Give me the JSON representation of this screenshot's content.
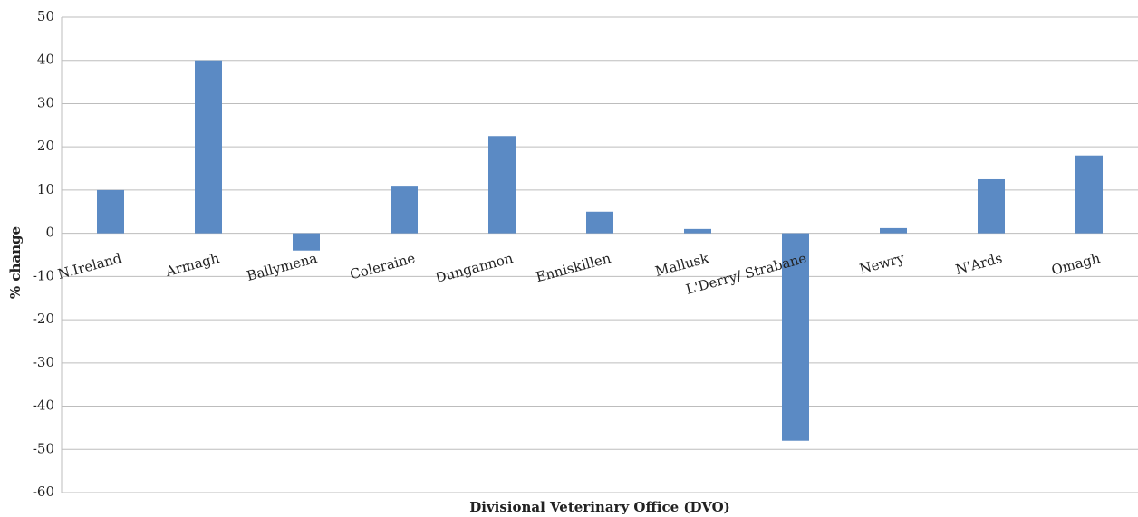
{
  "chart_data": {
    "type": "bar",
    "x_label": "Divisional Veterinary Office (DVO)",
    "y_label": "% change",
    "categories": [
      "N.Ireland",
      "Armagh",
      "Ballymena",
      "Coleraine",
      "Dungannon",
      "Enniskillen",
      "Mallusk",
      "L'Derry/ Strabane",
      "Newry",
      "N'Ards",
      "Omagh"
    ],
    "values": [
      10,
      40,
      -4,
      11,
      22.5,
      5,
      1,
      -48,
      1.2,
      12.5,
      18
    ],
    "color": "#5b8ac4",
    "ylim": [
      -60,
      50
    ],
    "yticks": [
      -60,
      -50,
      -40,
      -30,
      -20,
      -10,
      0,
      10,
      20,
      30,
      40,
      50
    ],
    "grid": true
  }
}
